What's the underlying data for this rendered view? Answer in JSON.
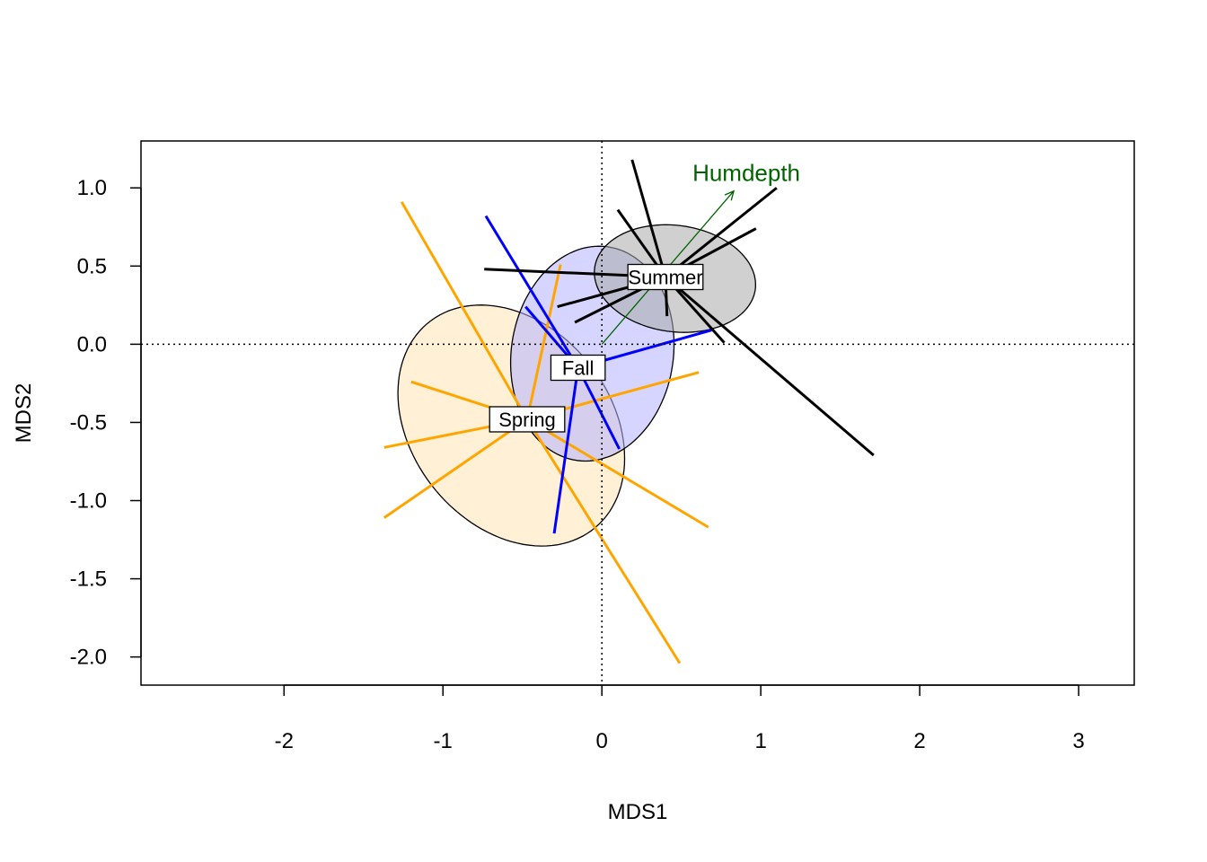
{
  "chart_data": {
    "type": "scatter",
    "title": "",
    "xlabel": "MDS1",
    "ylabel": "MDS2",
    "xlim": [
      -2.9,
      3.35
    ],
    "ylim": [
      -2.18,
      1.3
    ],
    "xticks": [
      -2,
      -1,
      0,
      1,
      2,
      3
    ],
    "xtick_labels": [
      "-2",
      "-1",
      "0",
      "1",
      "2",
      "3"
    ],
    "yticks": [
      -2.0,
      -1.5,
      -1.0,
      -0.5,
      0.0,
      0.5,
      1.0
    ],
    "ytick_labels": [
      "-2.0",
      "-1.5",
      "-1.0",
      "-0.5",
      "0.0",
      "0.5",
      "1.0"
    ],
    "zero_lines": true,
    "groups": [
      {
        "name": "Spring",
        "color": "#ffa500",
        "fill": "#ffe4b5",
        "centroid": [
          -0.47,
          -0.48
        ],
        "points": [
          [
            -1.26,
            0.91
          ],
          [
            -0.26,
            0.51
          ],
          [
            -1.2,
            -0.24
          ],
          [
            -1.37,
            -0.66
          ],
          [
            -1.37,
            -1.11
          ],
          [
            0.61,
            -0.18
          ],
          [
            0.67,
            -1.17
          ],
          [
            0.49,
            -2.04
          ]
        ],
        "ellipse": {
          "center": [
            -0.57,
            -0.52
          ],
          "rx": 0.84,
          "ry": 0.63,
          "angle_deg": -53
        }
      },
      {
        "name": "Fall",
        "color": "#0000ff",
        "fill": "#b3b3ff",
        "centroid": [
          -0.15,
          -0.15
        ],
        "points": [
          [
            -0.73,
            0.82
          ],
          [
            -0.48,
            0.24
          ],
          [
            0.69,
            0.09
          ],
          [
            0.11,
            -0.67
          ],
          [
            -0.3,
            -1.21
          ]
        ],
        "ellipse": {
          "center": [
            -0.06,
            -0.06
          ],
          "rx": 0.51,
          "ry": 0.69,
          "angle_deg": -8
        }
      },
      {
        "name": "Summer",
        "color": "#000000",
        "fill": "#a9a9a9",
        "centroid": [
          0.4,
          0.43
        ],
        "points": [
          [
            0.19,
            1.18
          ],
          [
            1.1,
            1.0
          ],
          [
            0.1,
            0.86
          ],
          [
            0.97,
            0.74
          ],
          [
            -0.74,
            0.48
          ],
          [
            -0.28,
            0.24
          ],
          [
            -0.17,
            0.14
          ],
          [
            0.41,
            0.18
          ],
          [
            0.77,
            0.01
          ],
          [
            1.71,
            -0.71
          ]
        ],
        "ellipse": {
          "center": [
            0.46,
            0.42
          ],
          "rx": 0.51,
          "ry": 0.34,
          "angle_deg": -8
        }
      }
    ],
    "vector": {
      "name": "Humdepth",
      "color": "#006400",
      "from": [
        0,
        0
      ],
      "to": [
        0.83,
        0.98
      ]
    }
  }
}
